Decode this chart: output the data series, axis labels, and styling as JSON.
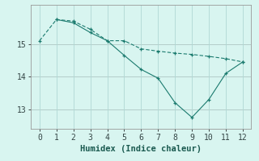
{
  "line1_x": [
    0,
    1,
    2,
    3,
    4,
    5,
    6,
    7,
    8,
    9,
    10,
    11,
    12
  ],
  "line1_y": [
    15.1,
    15.75,
    15.7,
    15.45,
    15.1,
    15.1,
    14.85,
    14.78,
    14.72,
    14.68,
    14.62,
    14.55,
    14.45
  ],
  "line2_x": [
    1,
    2,
    3,
    4,
    5,
    6,
    7,
    8,
    9,
    10,
    11,
    12
  ],
  "line2_y": [
    15.75,
    15.65,
    15.35,
    15.1,
    14.65,
    14.22,
    13.95,
    13.2,
    12.75,
    13.3,
    14.1,
    14.45
  ],
  "color": "#1a7a6e",
  "bg_color": "#d8f5f0",
  "grid_color_minor": "#c0e8e4",
  "grid_color_major": "#b0d8d4",
  "red_line_color": "#cc8888",
  "xlabel": "Humidex (Indice chaleur)",
  "xlim": [
    -0.5,
    12.5
  ],
  "ylim": [
    12.4,
    16.2
  ],
  "xticks": [
    0,
    1,
    2,
    3,
    4,
    5,
    6,
    7,
    8,
    9,
    10,
    11,
    12
  ],
  "yticks": [
    13,
    14,
    15
  ],
  "xlabel_fontsize": 7.5,
  "tick_fontsize": 7
}
